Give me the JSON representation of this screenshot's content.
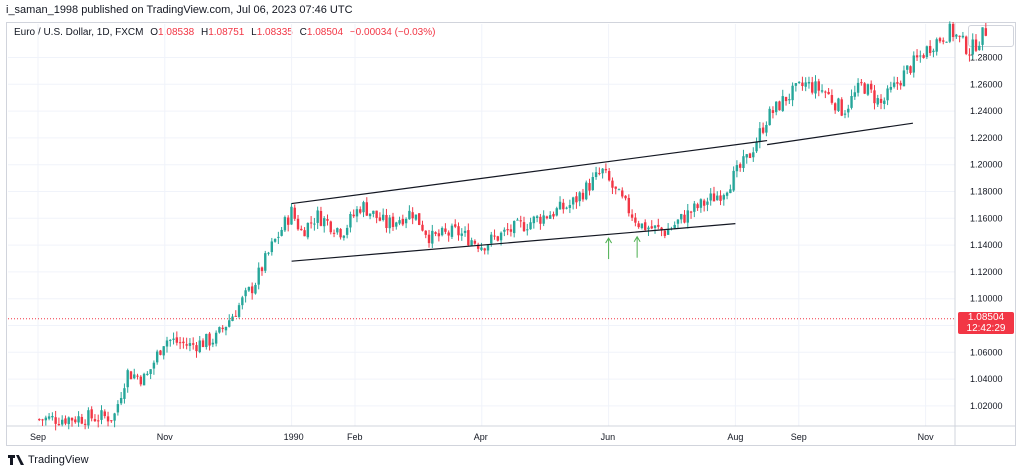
{
  "header": {
    "publisher_line": "i_saman_1998 published on TradingView.com, Jul 06, 2023 07:46 UTC"
  },
  "legend": {
    "symbol": "Euro / U.S. Dollar, 1D, FXCM",
    "open_key": "O",
    "open": "1.08538",
    "high_key": "H",
    "high": "1.08751",
    "low_key": "L",
    "low": "1.08335",
    "close_key": "C",
    "close": "1.08504",
    "change": "−0.00034 (−0.03%)"
  },
  "last_price": {
    "value": "1.08504",
    "countdown": "12:42:29"
  },
  "footer": {
    "brand": "TradingView"
  },
  "colors": {
    "up": "#26a69a",
    "down": "#f23645",
    "line": "#131722",
    "arrow": "#4caf50",
    "grid": "#f0f3fa",
    "price_line": "#f23645"
  },
  "chart_data": {
    "type": "candlestick",
    "y_axis": {
      "ticks": [
        "1.28000",
        "1.26000",
        "1.24000",
        "1.22000",
        "1.20000",
        "1.18000",
        "1.16000",
        "1.14000",
        "1.12000",
        "1.10000",
        "1.08000",
        "1.06000",
        "1.04000",
        "1.02000"
      ],
      "range": [
        1.005,
        1.305
      ]
    },
    "x_axis": {
      "ticks": [
        {
          "label": "Sep",
          "month_index": 0
        },
        {
          "label": "Nov",
          "month_index": 2
        },
        {
          "label": "1990",
          "month_index": 4
        },
        {
          "label": "Feb",
          "month_index": 5
        },
        {
          "label": "Apr",
          "month_index": 7
        },
        {
          "label": "Jun",
          "month_index": 9
        },
        {
          "label": "Aug",
          "month_index": 11
        },
        {
          "label": "Sep",
          "month_index": 12
        },
        {
          "label": "Nov",
          "month_index": 14
        }
      ]
    },
    "price_path": [
      [
        0,
        1.01
      ],
      [
        1.2,
        1.012
      ],
      [
        1.4,
        1.045
      ],
      [
        1.7,
        1.04
      ],
      [
        2.0,
        1.07
      ],
      [
        2.4,
        1.065
      ],
      [
        2.8,
        1.07
      ],
      [
        3.1,
        1.09
      ],
      [
        3.4,
        1.11
      ],
      [
        3.7,
        1.14
      ],
      [
        4.0,
        1.165
      ],
      [
        4.15,
        1.15
      ],
      [
        4.4,
        1.162
      ],
      [
        4.8,
        1.15
      ],
      [
        5.1,
        1.17
      ],
      [
        5.5,
        1.155
      ],
      [
        5.9,
        1.165
      ],
      [
        6.2,
        1.145
      ],
      [
        6.6,
        1.15
      ],
      [
        7.0,
        1.14
      ],
      [
        7.4,
        1.15
      ],
      [
        7.9,
        1.16
      ],
      [
        8.4,
        1.17
      ],
      [
        8.9,
        1.195
      ],
      [
        9.1,
        1.18
      ],
      [
        9.5,
        1.155
      ],
      [
        9.9,
        1.15
      ],
      [
        10.3,
        1.165
      ],
      [
        10.8,
        1.18
      ],
      [
        11.2,
        1.205
      ],
      [
        11.5,
        1.235
      ],
      [
        11.8,
        1.25
      ],
      [
        12.1,
        1.26
      ],
      [
        12.4,
        1.255
      ],
      [
        12.7,
        1.24
      ],
      [
        13.0,
        1.26
      ],
      [
        13.3,
        1.245
      ],
      [
        13.7,
        1.27
      ],
      [
        14.1,
        1.29
      ],
      [
        14.4,
        1.3
      ],
      [
        14.7,
        1.285
      ],
      [
        15.0,
        1.303
      ]
    ],
    "trendlines": [
      {
        "name": "channel-upper",
        "from": [
          4.0,
          1.171
        ],
        "to": [
          11.5,
          1.218
        ]
      },
      {
        "name": "channel-lower",
        "from": [
          4.0,
          1.128
        ],
        "to": [
          11.0,
          1.156
        ]
      },
      {
        "name": "support-line",
        "from": [
          11.5,
          1.215
        ],
        "to": [
          13.8,
          1.231
        ]
      }
    ],
    "arrows": [
      {
        "month_index": 9.0,
        "price": 1.146
      },
      {
        "month_index": 9.45,
        "price": 1.147
      }
    ],
    "last_price": 1.08504
  }
}
